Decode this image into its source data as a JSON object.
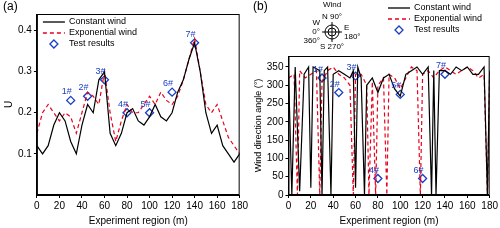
{
  "chart_data": [
    {
      "type": "line",
      "panel_label": "(a)",
      "x_label": "Experiment region (m)",
      "y_label": "U",
      "xlim": [
        0,
        180
      ],
      "xticks": [
        0,
        20,
        40,
        60,
        80,
        100,
        120,
        140,
        160,
        180
      ],
      "ylim": [
        0,
        0.44
      ],
      "yticks": [
        0.1,
        0.2,
        0.3,
        0.4
      ],
      "grid": false,
      "legend": "upper left",
      "series": [
        {
          "name": "Constant wind",
          "color": "#000000",
          "line_style": "solid",
          "x": [
            0,
            5,
            10,
            15,
            20,
            25,
            30,
            35,
            40,
            45,
            50,
            55,
            60,
            65,
            70,
            75,
            80,
            85,
            90,
            95,
            100,
            105,
            110,
            115,
            120,
            125,
            130,
            135,
            140,
            145,
            150,
            155,
            160,
            165,
            170,
            175,
            180
          ],
          "values": [
            0.12,
            0.1,
            0.12,
            0.17,
            0.2,
            0.18,
            0.13,
            0.1,
            0.17,
            0.22,
            0.2,
            0.28,
            0.3,
            0.15,
            0.12,
            0.15,
            0.2,
            0.21,
            0.18,
            0.17,
            0.19,
            0.22,
            0.19,
            0.18,
            0.2,
            0.25,
            0.28,
            0.33,
            0.37,
            0.3,
            0.2,
            0.15,
            0.17,
            0.12,
            0.1,
            0.08,
            0.1
          ]
        },
        {
          "name": "Exponential wind",
          "color": "#e8001c",
          "line_style": "dashed",
          "x": [
            0,
            5,
            10,
            15,
            20,
            25,
            30,
            35,
            40,
            45,
            50,
            55,
            60,
            65,
            70,
            75,
            80,
            85,
            90,
            95,
            100,
            105,
            110,
            115,
            120,
            125,
            130,
            135,
            140,
            145,
            150,
            155,
            160,
            165,
            170,
            175,
            180
          ],
          "values": [
            0.15,
            0.2,
            0.22,
            0.2,
            0.18,
            0.2,
            0.19,
            0.15,
            0.2,
            0.25,
            0.24,
            0.22,
            0.3,
            0.2,
            0.13,
            0.18,
            0.22,
            0.2,
            0.2,
            0.22,
            0.24,
            0.22,
            0.25,
            0.23,
            0.22,
            0.24,
            0.28,
            0.33,
            0.38,
            0.3,
            0.22,
            0.2,
            0.22,
            0.18,
            0.14,
            0.12,
            0.1
          ]
        },
        {
          "name": "Test results",
          "color": "#1a3fc4",
          "type": "scatter",
          "marker": "diamond",
          "x": [
            30,
            45,
            60,
            80,
            100,
            120,
            140
          ],
          "values": [
            0.23,
            0.24,
            0.28,
            0.2,
            0.2,
            0.25,
            0.37
          ],
          "labels": [
            "1#",
            "2#",
            "3#",
            "4#",
            "5#",
            "6#",
            "7#"
          ]
        }
      ]
    },
    {
      "type": "line",
      "panel_label": "(b)",
      "x_label": "Experiment region (m)",
      "y_label": "Wind direction angle (°)",
      "xlim": [
        0,
        180
      ],
      "xticks": [
        0,
        20,
        40,
        60,
        80,
        100,
        120,
        140,
        160,
        180
      ],
      "ylim": [
        0,
        380
      ],
      "yticks": [
        0,
        50,
        100,
        150,
        200,
        250,
        300,
        350
      ],
      "grid": false,
      "legend": "top",
      "compass": {
        "title": "Wind",
        "points": [
          {
            "letter": "N",
            "angles": [
              "90°"
            ]
          },
          {
            "letter": "E",
            "angles": [
              "180°"
            ]
          },
          {
            "letter": "S",
            "angles": [
              "270°"
            ]
          },
          {
            "letter": "W",
            "angles": [
              "0°",
              "360°"
            ]
          }
        ]
      },
      "series": [
        {
          "name": "Constant wind",
          "color": "#000000",
          "line_style": "solid",
          "x": [
            0,
            3,
            6,
            10,
            14,
            18,
            20,
            22,
            28,
            30,
            32,
            35,
            38,
            40,
            45,
            50,
            55,
            58,
            60,
            62,
            65,
            68,
            70,
            75,
            80,
            85,
            90,
            95,
            100,
            105,
            110,
            115,
            120,
            125,
            128,
            130,
            132,
            135,
            140,
            145,
            150,
            155,
            160,
            165,
            170,
            175,
            178,
            180
          ],
          "values": [
            340,
            0,
            350,
            10,
            330,
            350,
            20,
            350,
            340,
            0,
            340,
            350,
            0,
            330,
            340,
            330,
            320,
            340,
            20,
            350,
            320,
            0,
            300,
            320,
            280,
            320,
            330,
            290,
            270,
            330,
            340,
            350,
            330,
            350,
            0,
            340,
            0,
            340,
            340,
            330,
            350,
            340,
            350,
            330,
            330,
            350,
            0,
            340
          ]
        },
        {
          "name": "Exponential wind",
          "color": "#e8001c",
          "line_style": "dashed",
          "x": [
            0,
            5,
            8,
            10,
            15,
            20,
            25,
            28,
            30,
            35,
            40,
            45,
            50,
            55,
            58,
            60,
            65,
            70,
            72,
            75,
            78,
            80,
            85,
            88,
            90,
            95,
            100,
            105,
            110,
            115,
            118,
            120,
            125,
            130,
            135,
            140,
            145,
            150,
            155,
            160,
            165,
            170,
            175,
            178,
            180
          ],
          "values": [
            320,
            330,
            0,
            340,
            320,
            330,
            340,
            0,
            310,
            340,
            350,
            330,
            320,
            300,
            0,
            330,
            330,
            300,
            0,
            310,
            0,
            300,
            320,
            0,
            330,
            320,
            290,
            320,
            350,
            340,
            0,
            330,
            340,
            320,
            340,
            350,
            340,
            330,
            340,
            350,
            340,
            320,
            330,
            0,
            340
          ]
        },
        {
          "name": "Test results",
          "color": "#1a3fc4",
          "type": "scatter",
          "marker": "diamond",
          "x": [
            30,
            45,
            60,
            80,
            100,
            120,
            140
          ],
          "values": [
            320,
            280,
            325,
            45,
            275,
            45,
            330
          ],
          "labels": [
            "1#",
            "2#",
            "3#",
            "4#",
            "5#",
            "6#",
            "7#"
          ]
        }
      ]
    }
  ]
}
